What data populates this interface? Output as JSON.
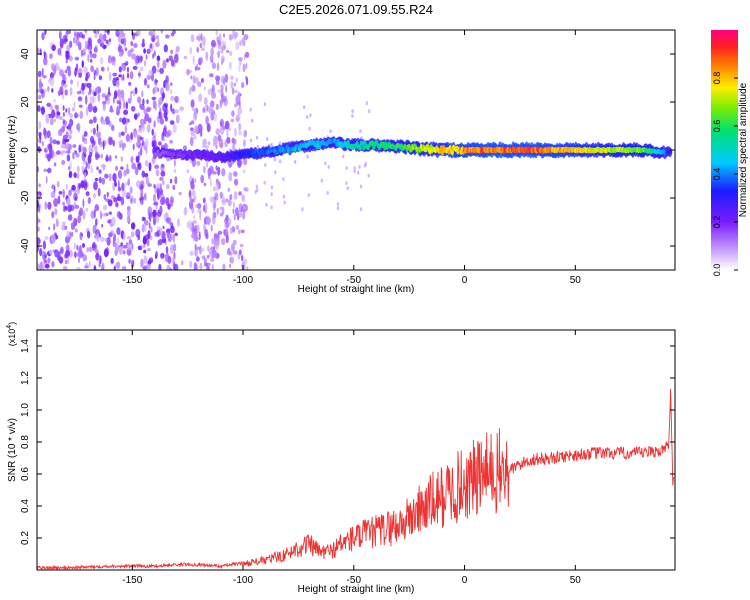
{
  "title": "C2E5.2026.071.09.55.R24",
  "colorbar": {
    "label": "Normalized spectral amplitude",
    "ticks": [
      "0.0",
      "0.2",
      "0.4",
      "0.6",
      "0.8"
    ],
    "tick_values": [
      0,
      0.2,
      0.4,
      0.6,
      0.8
    ],
    "range": [
      0,
      1
    ]
  },
  "chart_data": [
    {
      "type": "heatmap",
      "name": "spectrogram",
      "xlabel": "Height of straight line (km)",
      "ylabel": "Frequency (Hz)",
      "xlim": [
        -193,
        95
      ],
      "ylim": [
        -50,
        50
      ],
      "x_ticks": [
        -150,
        -100,
        -50,
        0,
        50
      ],
      "x_tick_labels": [
        "-150",
        "-100",
        "-50",
        "0",
        "50"
      ],
      "y_ticks": [
        -40,
        -20,
        0,
        20,
        40
      ],
      "y_tick_labels": [
        "-40",
        "-20",
        "0",
        "20",
        "40"
      ],
      "ridge": {
        "x": [
          -140,
          -130,
          -120,
          -110,
          -100,
          -90,
          -80,
          -70,
          -60,
          -50,
          -40,
          -30,
          -20,
          -10,
          0,
          10,
          20,
          30,
          40,
          50,
          60,
          70,
          80,
          90,
          93
        ],
        "freq": [
          -1,
          -2,
          -2,
          -3,
          -2,
          -1,
          0.5,
          2,
          3,
          2,
          2,
          1.5,
          0.5,
          0,
          0,
          0,
          0,
          0,
          0,
          0,
          0,
          0,
          0,
          -1,
          -1
        ],
        "amplitude": [
          0.15,
          0.2,
          0.22,
          0.25,
          0.35,
          0.4,
          0.45,
          0.5,
          0.45,
          0.55,
          0.6,
          0.65,
          0.75,
          0.85,
          0.9,
          0.95,
          0.95,
          0.95,
          0.9,
          0.85,
          0.8,
          0.75,
          0.7,
          0.45,
          0.3
        ]
      },
      "noise_region": [
        -193,
        -98
      ]
    },
    {
      "type": "line",
      "name": "snr",
      "xlabel": "Height of straight line (km)",
      "ylabel": "SNR (10 * v/v)",
      "y_scale_label": "(x10",
      "y_scale_exp": "4",
      "xlim": [
        -193,
        95
      ],
      "ylim": [
        0,
        1.5
      ],
      "x_ticks": [
        -150,
        -100,
        -50,
        0,
        50
      ],
      "x_tick_labels": [
        "-150",
        "-100",
        "-50",
        "0",
        "50"
      ],
      "y_ticks": [
        0.2,
        0.4,
        0.6,
        0.8,
        1.0,
        1.2,
        1.4
      ],
      "y_tick_labels": [
        "0.2",
        "0.4",
        "0.6",
        "0.8",
        "1.0",
        "1.2",
        "1.4"
      ],
      "color": "#ee3333",
      "series": [
        {
          "name": "SNR",
          "x": [
            -193,
            -180,
            -160,
            -140,
            -130,
            -120,
            -110,
            -100,
            -90,
            -80,
            -75,
            -70,
            -65,
            -60,
            -55,
            -50,
            -45,
            -40,
            -35,
            -30,
            -25,
            -20,
            -15,
            -10,
            -5,
            0,
            5,
            10,
            20,
            25,
            30,
            40,
            50,
            60,
            70,
            80,
            85,
            90,
            92,
            93,
            94
          ],
          "y": [
            0.01,
            0.01,
            0.02,
            0.02,
            0.03,
            0.03,
            0.02,
            0.04,
            0.06,
            0.1,
            0.14,
            0.16,
            0.11,
            0.12,
            0.17,
            0.2,
            0.22,
            0.24,
            0.26,
            0.28,
            0.32,
            0.38,
            0.42,
            0.46,
            0.5,
            0.54,
            0.57,
            0.6,
            0.62,
            0.66,
            0.69,
            0.7,
            0.72,
            0.73,
            0.73,
            0.73,
            0.74,
            0.75,
            0.78,
            1.1,
            0.55
          ]
        }
      ]
    }
  ]
}
